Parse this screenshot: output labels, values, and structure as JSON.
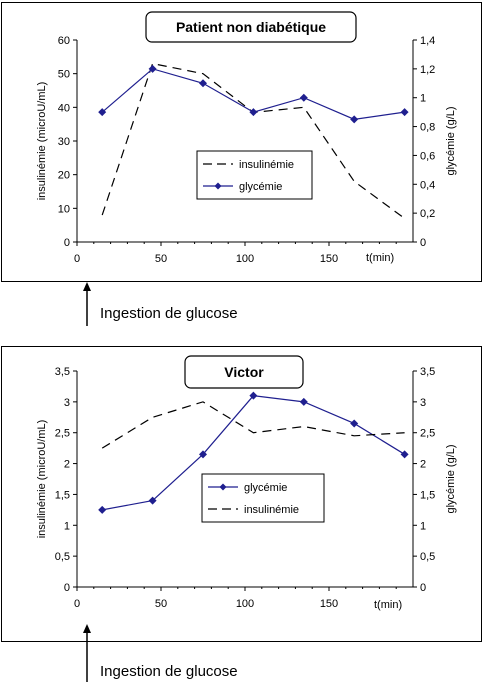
{
  "charts": [
    {
      "title": "Patient non diabétique",
      "ylabel_left": "insulinémie (microU/mL)",
      "ylabel_right": "glycémie (g/L)",
      "xlabel": "t(min)",
      "legend": {
        "items": [
          "insulinémie",
          "glycémie"
        ]
      },
      "caption": "Ingestion de glucose"
    },
    {
      "title": "Victor",
      "ylabel_left": "insulinémie (microU/mL)",
      "ylabel_right": "glycémie (g/L)",
      "xlabel": "t(min)",
      "legend": {
        "items": [
          "glycémie",
          "insulinémie"
        ]
      },
      "caption": "Ingestion de glucose"
    }
  ],
  "chart_data": [
    {
      "type": "line",
      "title": "Patient non diabétique",
      "xlabel": "t(min)",
      "ylabel": "insulinémie (microU/mL)",
      "y2label": "glycémie (g/L)",
      "xlim": [
        0,
        200
      ],
      "ylim": [
        0,
        60
      ],
      "y2lim": [
        0,
        1.4
      ],
      "xticks": [
        "0",
        "50",
        "100",
        "150"
      ],
      "yticks": [
        "0",
        "10",
        "20",
        "30",
        "40",
        "50",
        "60"
      ],
      "y2ticks": [
        "0",
        "0,2",
        "0,4",
        "0,6",
        "0,8",
        "1",
        "1,2",
        "1,4"
      ],
      "legend_position": "center",
      "series": [
        {
          "name": "insulinémie",
          "axis": "left",
          "style": "dashed",
          "color": "#000000",
          "x": [
            15,
            45,
            75,
            105,
            135,
            165,
            195
          ],
          "y": [
            8,
            53,
            50,
            38.5,
            40,
            18,
            7
          ]
        },
        {
          "name": "glycémie",
          "axis": "right",
          "style": "solid-diamond",
          "color": "#1f1f8f",
          "x": [
            15,
            45,
            75,
            105,
            135,
            165,
            195
          ],
          "y": [
            0.9,
            1.2,
            1.1,
            0.9,
            1.0,
            0.85,
            0.9
          ]
        }
      ]
    },
    {
      "type": "line",
      "title": "Victor",
      "xlabel": "t(min)",
      "ylabel": "insulinémie (microU/mL)",
      "y2label": "glycémie (g/L)",
      "xlim": [
        0,
        200
      ],
      "ylim": [
        0,
        3.5
      ],
      "y2lim": [
        0,
        3.5
      ],
      "xticks": [
        "0",
        "50",
        "100",
        "150"
      ],
      "yticks": [
        "0",
        "0,5",
        "1",
        "1,5",
        "2",
        "2,5",
        "3",
        "3,5"
      ],
      "y2ticks": [
        "0",
        "0,5",
        "1",
        "1,5",
        "2",
        "2,5",
        "3",
        "3,5"
      ],
      "legend_position": "center-right",
      "series": [
        {
          "name": "glycémie",
          "axis": "right",
          "style": "solid-diamond",
          "color": "#1f1f8f",
          "x": [
            15,
            45,
            75,
            105,
            135,
            165,
            195
          ],
          "y": [
            1.25,
            1.4,
            2.15,
            3.1,
            3.0,
            2.65,
            2.15
          ]
        },
        {
          "name": "insulinémie",
          "axis": "left",
          "style": "dashed",
          "color": "#000000",
          "x": [
            15,
            45,
            75,
            105,
            135,
            165,
            195
          ],
          "y": [
            2.25,
            2.75,
            3.0,
            2.5,
            2.6,
            2.45,
            2.5
          ]
        }
      ]
    }
  ]
}
